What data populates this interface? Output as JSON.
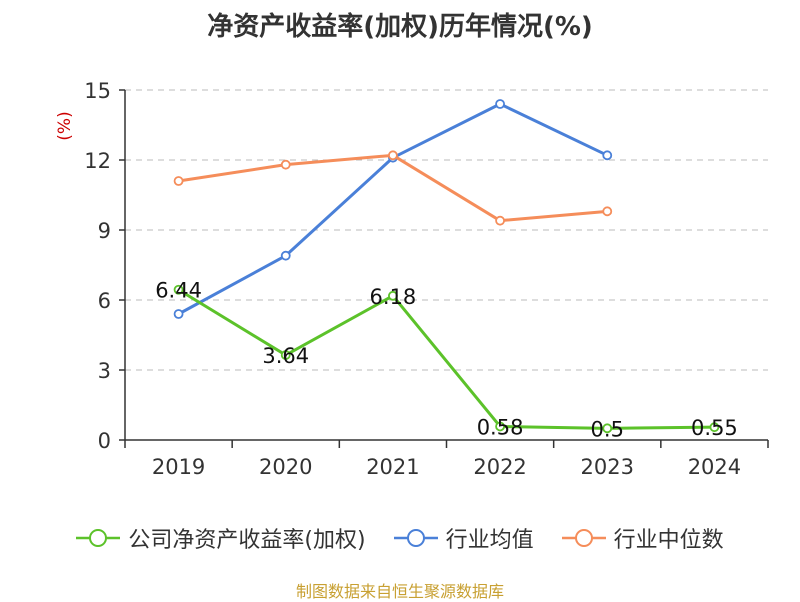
{
  "title": "净资产收益率(加权)历年情况(%)",
  "source": "制图数据来自恒生聚源数据库",
  "colors": {
    "title": "#333333",
    "axis": "#333333",
    "grid": "#bbbbbb",
    "unit": "#cc0000",
    "source": "#c8a032",
    "label": "#111111"
  },
  "chart_data": {
    "type": "line",
    "title": "净资产收益率(加权)历年情况(%)",
    "ylabel": "(%)",
    "xlabel": "",
    "categories": [
      "2019",
      "2020",
      "2021",
      "2022",
      "2023",
      "2024"
    ],
    "y_ticks": [
      "15",
      "12",
      "9",
      "6",
      "3",
      "0"
    ],
    "ylim": [
      0,
      15
    ],
    "grid": true,
    "legend_position": "bottom",
    "series": [
      {
        "name": "公司净资产收益率(加权)",
        "color": "#5cc22a",
        "values": [
          6.44,
          3.64,
          6.18,
          0.58,
          0.5,
          0.55
        ],
        "labels": [
          "6.44",
          "3.64",
          "6.18",
          "0.58",
          "0.5",
          "0.55"
        ]
      },
      {
        "name": "行业均值",
        "color": "#4a80d8",
        "values": [
          5.4,
          7.9,
          12.1,
          14.4,
          12.2,
          null
        ]
      },
      {
        "name": "行业中位数",
        "color": "#f58d5a",
        "values": [
          11.1,
          11.8,
          12.2,
          9.4,
          9.8,
          null
        ]
      }
    ]
  }
}
